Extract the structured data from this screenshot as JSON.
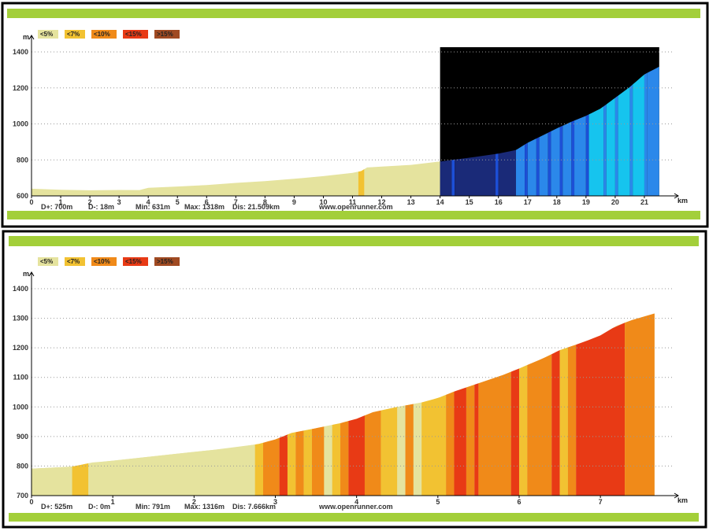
{
  "legend": [
    {
      "label": "<5%",
      "color": "#e5e39e"
    },
    {
      "label": "<7%",
      "color": "#f2c232"
    },
    {
      "label": "<10%",
      "color": "#f08a19"
    },
    {
      "label": "<15%",
      "color": "#e83a15"
    },
    {
      "label": ">15%",
      "color": "#a04a22"
    }
  ],
  "colors": {
    "frame": "#000000",
    "band": "#a3cf3a",
    "grid": "#999999",
    "highlight_bg": "#000000",
    "blues": [
      "#1a2a78",
      "#1d4fd6",
      "#2b88ea",
      "#16c4ee"
    ]
  },
  "chart_data": [
    {
      "type": "area",
      "yunit": "m",
      "xunit": "km",
      "xlim": [
        0,
        22
      ],
      "ylim": [
        600,
        1400
      ],
      "yticks": [
        600,
        800,
        1000,
        1200,
        1400
      ],
      "xticks": [
        0,
        1,
        2,
        3,
        4,
        5,
        6,
        7,
        8,
        9,
        10,
        11,
        12,
        13,
        14,
        15,
        16,
        17,
        18,
        19,
        20,
        21
      ],
      "grid": true,
      "x": [
        0,
        1,
        2,
        3,
        3.7,
        4,
        5,
        6,
        7,
        8,
        9,
        10,
        11,
        11.3,
        11.5,
        12,
        13,
        14,
        15,
        16,
        16.6,
        17,
        17.5,
        18,
        18.5,
        19,
        19.5,
        20,
        20.5,
        21,
        21.509
      ],
      "y": [
        640,
        634,
        631,
        633,
        632,
        645,
        652,
        660,
        672,
        682,
        695,
        710,
        728,
        738,
        758,
        763,
        772,
        791,
        812,
        835,
        855,
        895,
        935,
        975,
        1012,
        1045,
        1085,
        1145,
        1205,
        1275,
        1318
      ],
      "highlight_range_km": [
        14,
        21.509
      ],
      "highlight_segments": [
        {
          "x": [
            14,
            14.4
          ],
          "color": 0
        },
        {
          "x": [
            14.4,
            14.5
          ],
          "color": 1
        },
        {
          "x": [
            14.5,
            15.9
          ],
          "color": 0
        },
        {
          "x": [
            15.9,
            16.0
          ],
          "color": 1
        },
        {
          "x": [
            16.0,
            16.6
          ],
          "color": 0
        },
        {
          "x": [
            16.6,
            16.9
          ],
          "color": 2
        },
        {
          "x": [
            16.9,
            17.0
          ],
          "color": 1
        },
        {
          "x": [
            17.0,
            17.3
          ],
          "color": 2
        },
        {
          "x": [
            17.3,
            17.4
          ],
          "color": 1
        },
        {
          "x": [
            17.4,
            17.7
          ],
          "color": 2
        },
        {
          "x": [
            17.7,
            17.8
          ],
          "color": 1
        },
        {
          "x": [
            17.8,
            18.1
          ],
          "color": 2
        },
        {
          "x": [
            18.1,
            18.2
          ],
          "color": 1
        },
        {
          "x": [
            18.2,
            18.5
          ],
          "color": 2
        },
        {
          "x": [
            18.5,
            18.6
          ],
          "color": 1
        },
        {
          "x": [
            18.6,
            19.0
          ],
          "color": 2
        },
        {
          "x": [
            19.0,
            19.1
          ],
          "color": 1
        },
        {
          "x": [
            19.1,
            19.6
          ],
          "color": 3
        },
        {
          "x": [
            19.6,
            19.7
          ],
          "color": 2
        },
        {
          "x": [
            19.7,
            20.0
          ],
          "color": 3
        },
        {
          "x": [
            20.0,
            20.1
          ],
          "color": 2
        },
        {
          "x": [
            20.1,
            20.5
          ],
          "color": 3
        },
        {
          "x": [
            20.5,
            20.6
          ],
          "color": 2
        },
        {
          "x": [
            20.6,
            21.0
          ],
          "color": 3
        },
        {
          "x": [
            21.0,
            21.1
          ],
          "color": 2
        },
        {
          "x": [
            21.1,
            21.509
          ],
          "color": 2
        }
      ],
      "segments": [
        {
          "x": [
            11.2,
            11.4
          ],
          "grade": "<7%"
        }
      ],
      "stats": {
        "dplus": "D+: 700m",
        "dminus": "D-: 18m",
        "min": "Min: 631m",
        "max": "Max: 1318m",
        "dis": "Dis: 21.509km",
        "site": "www.openrunner.com"
      }
    },
    {
      "type": "area",
      "yunit": "m",
      "xunit": "km",
      "xlim": [
        0,
        7.9
      ],
      "ylim": [
        700,
        1400
      ],
      "yticks": [
        700,
        800,
        900,
        1000,
        1100,
        1200,
        1300,
        1400
      ],
      "xticks": [
        0,
        1,
        2,
        3,
        4,
        5,
        6,
        7
      ],
      "grid": true,
      "x": [
        0,
        0.5,
        0.75,
        1,
        1.5,
        2,
        2.5,
        2.8,
        3,
        3.2,
        3.5,
        3.8,
        4,
        4.2,
        4.5,
        4.8,
        5,
        5.2,
        5.5,
        5.8,
        6,
        6.3,
        6.5,
        6.8,
        7,
        7.2,
        7.4,
        7.666
      ],
      "y": [
        791,
        798,
        812,
        818,
        833,
        848,
        862,
        875,
        890,
        912,
        928,
        945,
        960,
        982,
        1000,
        1015,
        1030,
        1052,
        1080,
        1108,
        1130,
        1165,
        1192,
        1220,
        1242,
        1275,
        1295,
        1316
      ],
      "segments": [
        {
          "x": [
            0,
            0.5
          ],
          "grade": "<5%"
        },
        {
          "x": [
            0.5,
            0.7
          ],
          "grade": "<7%"
        },
        {
          "x": [
            0.7,
            2.75
          ],
          "grade": "<5%"
        },
        {
          "x": [
            2.75,
            2.85
          ],
          "grade": "<7%"
        },
        {
          "x": [
            2.85,
            3.05
          ],
          "grade": "<10%"
        },
        {
          "x": [
            3.05,
            3.15
          ],
          "grade": "<15%"
        },
        {
          "x": [
            3.15,
            3.25
          ],
          "grade": "<7%"
        },
        {
          "x": [
            3.25,
            3.35
          ],
          "grade": "<10%"
        },
        {
          "x": [
            3.35,
            3.45
          ],
          "grade": "<7%"
        },
        {
          "x": [
            3.45,
            3.6
          ],
          "grade": "<10%"
        },
        {
          "x": [
            3.6,
            3.7
          ],
          "grade": "<5%"
        },
        {
          "x": [
            3.7,
            3.8
          ],
          "grade": "<7%"
        },
        {
          "x": [
            3.8,
            3.9
          ],
          "grade": "<10%"
        },
        {
          "x": [
            3.9,
            4.1
          ],
          "grade": "<15%"
        },
        {
          "x": [
            4.1,
            4.3
          ],
          "grade": "<10%"
        },
        {
          "x": [
            4.3,
            4.5
          ],
          "grade": "<7%"
        },
        {
          "x": [
            4.5,
            4.6
          ],
          "grade": "<5%"
        },
        {
          "x": [
            4.6,
            4.7
          ],
          "grade": "<10%"
        },
        {
          "x": [
            4.7,
            4.8
          ],
          "grade": "<5%"
        },
        {
          "x": [
            4.8,
            5.1
          ],
          "grade": "<7%"
        },
        {
          "x": [
            5.1,
            5.2
          ],
          "grade": "<10%"
        },
        {
          "x": [
            5.2,
            5.35
          ],
          "grade": "<15%"
        },
        {
          "x": [
            5.35,
            5.45
          ],
          "grade": "<10%"
        },
        {
          "x": [
            5.45,
            5.5
          ],
          "grade": "<15%"
        },
        {
          "x": [
            5.5,
            5.9
          ],
          "grade": "<10%"
        },
        {
          "x": [
            5.9,
            6.0
          ],
          "grade": "<15%"
        },
        {
          "x": [
            6.0,
            6.1
          ],
          "grade": "<7%"
        },
        {
          "x": [
            6.1,
            6.4
          ],
          "grade": "<10%"
        },
        {
          "x": [
            6.4,
            6.5
          ],
          "grade": "<15%"
        },
        {
          "x": [
            6.5,
            6.6
          ],
          "grade": "<7%"
        },
        {
          "x": [
            6.6,
            6.7
          ],
          "grade": "<10%"
        },
        {
          "x": [
            6.7,
            7.3
          ],
          "grade": "<15%"
        },
        {
          "x": [
            7.3,
            7.666
          ],
          "grade": "<10%"
        }
      ],
      "stats": {
        "dplus": "D+: 525m",
        "dminus": "D-: 0m",
        "min": "Min: 791m",
        "max": "Max: 1316m",
        "dis": "Dis: 7.666km",
        "site": "www.openrunner.com"
      }
    }
  ]
}
